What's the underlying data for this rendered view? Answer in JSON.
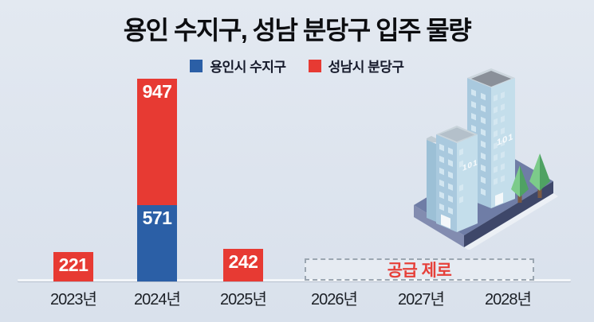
{
  "title": "용인 수지구, 성남 분당구 입주 물량",
  "legend": {
    "items": [
      {
        "label": "용인시 수지구",
        "color": "#2b5fa6"
      },
      {
        "label": "성남시 분당구",
        "color": "#e73a33"
      }
    ]
  },
  "chart_data": {
    "type": "bar",
    "stacked": true,
    "title": "용인 수지구, 성남 분당구 입주 물량",
    "categories": [
      "2023년",
      "2024년",
      "2025년",
      "2026년",
      "2027년",
      "2028년"
    ],
    "series": [
      {
        "name": "용인시 수지구",
        "color": "#2b5fa6",
        "values": [
          0,
          571,
          0,
          0,
          0,
          0
        ]
      },
      {
        "name": "성남시 분당구",
        "color": "#e73a33",
        "values": [
          221,
          947,
          242,
          0,
          0,
          0
        ]
      }
    ],
    "annotation": {
      "label": "공급 제로",
      "span": [
        "2026년",
        "2028년"
      ]
    },
    "xlabel": "",
    "ylabel": "",
    "legend_position": "top",
    "grid": false,
    "value_labels": "inside-top, white"
  },
  "illustration": {
    "tall_building_label": "101",
    "short_building_label": "101"
  },
  "colors": {
    "background": "#dde4ee",
    "bar_blue": "#2b5fa6",
    "bar_red": "#e73a33",
    "annotation_red": "#e6403a",
    "axis_line": "#f3f6f9",
    "platform": "#6f7da6"
  }
}
